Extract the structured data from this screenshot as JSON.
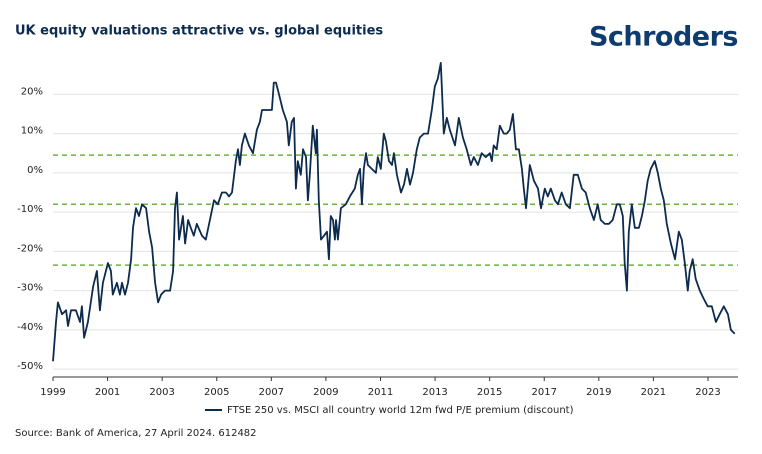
{
  "chart_data": {
    "type": "line",
    "title": "UK equity valuations attractive vs. global equities",
    "logo": "Schroders",
    "source": "Source: Bank of America, 27 April 2024. 612482",
    "x": [
      1999.0,
      1999.11,
      1999.18,
      1999.33,
      1999.48,
      1999.55,
      1999.66,
      1999.84,
      1999.99,
      2000.06,
      2000.14,
      2000.28,
      2000.47,
      2000.61,
      2000.72,
      2000.83,
      2001.01,
      2001.12,
      2001.19,
      2001.34,
      2001.45,
      2001.53,
      2001.64,
      2001.75,
      2001.86,
      2001.93,
      2002.04,
      2002.15,
      2002.26,
      2002.41,
      2002.52,
      2002.63,
      2002.74,
      2002.85,
      2002.96,
      2003.1,
      2003.29,
      2003.4,
      2003.47,
      2003.54,
      2003.62,
      2003.69,
      2003.76,
      2003.84,
      2003.95,
      2004.05,
      2004.16,
      2004.27,
      2004.46,
      2004.6,
      2004.75,
      2004.9,
      2005.04,
      2005.19,
      2005.34,
      2005.45,
      2005.56,
      2005.7,
      2005.78,
      2005.85,
      2005.92,
      2006.03,
      2006.18,
      2006.33,
      2006.47,
      2006.58,
      2006.66,
      2006.73,
      2006.8,
      2006.91,
      2007.02,
      2007.09,
      2007.17,
      2007.28,
      2007.42,
      2007.57,
      2007.64,
      2007.75,
      2007.83,
      2007.9,
      2007.97,
      2008.08,
      2008.16,
      2008.27,
      2008.34,
      2008.41,
      2008.52,
      2008.63,
      2008.67,
      2008.74,
      2008.82,
      2008.93,
      2009.04,
      2009.11,
      2009.18,
      2009.26,
      2009.33,
      2009.37,
      2009.44,
      2009.55,
      2009.73,
      2009.88,
      2010.06,
      2010.17,
      2010.25,
      2010.32,
      2010.39,
      2010.47,
      2010.54,
      2010.68,
      2010.83,
      2010.9,
      2011.01,
      2011.12,
      2011.2,
      2011.31,
      2011.42,
      2011.49,
      2011.6,
      2011.75,
      2011.86,
      2011.97,
      2012.08,
      2012.19,
      2012.33,
      2012.44,
      2012.59,
      2012.74,
      2012.88,
      2012.99,
      2013.1,
      2013.21,
      2013.32,
      2013.43,
      2013.54,
      2013.73,
      2013.87,
      2014.02,
      2014.16,
      2014.31,
      2014.42,
      2014.57,
      2014.71,
      2014.86,
      2015.01,
      2015.08,
      2015.15,
      2015.26,
      2015.37,
      2015.52,
      2015.63,
      2015.74,
      2015.85,
      2015.96,
      2016.07,
      2016.18,
      2016.25,
      2016.33,
      2016.47,
      2016.62,
      2016.77,
      2016.88,
      2017.02,
      2017.13,
      2017.24,
      2017.39,
      2017.5,
      2017.64,
      2017.79,
      2017.94,
      2018.08,
      2018.23,
      2018.38,
      2018.52,
      2018.67,
      2018.82,
      2018.96,
      2019.07,
      2019.22,
      2019.37,
      2019.51,
      2019.66,
      2019.77,
      2019.88,
      2019.95,
      2020.03,
      2020.1,
      2020.21,
      2020.32,
      2020.47,
      2020.58,
      2020.69,
      2020.79,
      2020.9,
      2021.05,
      2021.16,
      2021.27,
      2021.38,
      2021.49,
      2021.64,
      2021.79,
      2021.93,
      2022.04,
      2022.15,
      2022.26,
      2022.33,
      2022.44,
      2022.55,
      2022.7,
      2022.84,
      2022.99,
      2023.14,
      2023.29,
      2023.43,
      2023.58,
      2023.73,
      2023.84,
      2023.98
    ],
    "series": [
      {
        "name": "FTSE 250 vs. MSCI all country world 12m fwd P/E premium (discount)",
        "color": "#0d2b4e",
        "values": [
          -48,
          -38,
          -33,
          -36,
          -35,
          -39,
          -35,
          -35,
          -38,
          -34,
          -42,
          -38,
          -29,
          -25,
          -35,
          -28,
          -23,
          -25,
          -31,
          -28,
          -31,
          -28,
          -31,
          -28,
          -22,
          -14,
          -9,
          -11,
          -8,
          -9,
          -15,
          -19,
          -28,
          -33,
          -31,
          -30,
          -30,
          -25,
          -9,
          -5,
          -17,
          -14,
          -11,
          -18,
          -12,
          -14,
          -16,
          -13,
          -16,
          -17,
          -12,
          -7,
          -8,
          -5,
          -5,
          -6,
          -5,
          3,
          6,
          2,
          7,
          10,
          7,
          5,
          11,
          13,
          16,
          16,
          16,
          16,
          16,
          23,
          23,
          20,
          16,
          13,
          7,
          13,
          14,
          -4,
          3,
          -0.5,
          6,
          4,
          -7,
          -0.5,
          12,
          5,
          11,
          -7,
          -17,
          -16,
          -15,
          -22,
          -11,
          -12,
          -17,
          -12,
          -17,
          -9,
          -8,
          -6,
          -4,
          -0.5,
          1,
          -8,
          1,
          5,
          2,
          1,
          0,
          4,
          1,
          10,
          8,
          3,
          2,
          5,
          -0.5,
          -5,
          -3,
          1,
          -3,
          0,
          6,
          9,
          10,
          10,
          16,
          22,
          24,
          28,
          10,
          14,
          11,
          7,
          14,
          9,
          6,
          2,
          4,
          2,
          5,
          4,
          5,
          3,
          7,
          6,
          12,
          10,
          10,
          11,
          15,
          6,
          6,
          1,
          -4,
          -9,
          2,
          -2,
          -4,
          -9,
          -4,
          -6,
          -4,
          -7,
          -8,
          -5,
          -8,
          -9,
          -0.5,
          -0.5,
          -4,
          -5,
          -9,
          -12,
          -8,
          -12,
          -13,
          -13,
          -12,
          -8,
          -8,
          -11,
          -23,
          -30,
          -15,
          -8,
          -14,
          -14,
          -11,
          -7,
          -2,
          1,
          3,
          0,
          -4,
          -7,
          -13,
          -18,
          -22,
          -15,
          -17,
          -23,
          -30,
          -25,
          -22,
          -27,
          -30,
          -32,
          -34,
          -34,
          -38,
          -36,
          -34,
          -36,
          -40,
          -41
        ]
      }
    ],
    "xlim": [
      1999,
      2024.1
    ],
    "xticks": [
      1999,
      2001,
      2003,
      2005,
      2007,
      2009,
      2011,
      2013,
      2015,
      2017,
      2019,
      2021,
      2023
    ],
    "ylim": [
      -52,
      29
    ],
    "yticks": [
      {
        "value": -50,
        "label": "-50%"
      },
      {
        "value": -40,
        "label": "-40%"
      },
      {
        "value": -30,
        "label": "-30%"
      },
      {
        "value": -20,
        "label": "-20%"
      },
      {
        "value": -10,
        "label": "-10%"
      },
      {
        "value": 0,
        "label": "0%"
      },
      {
        "value": 10,
        "label": "10%"
      },
      {
        "value": 20,
        "label": "20%"
      }
    ],
    "reference_lines": [
      4.5,
      -8,
      -23.5
    ],
    "reference_color": "#6ab43e",
    "grid": true
  }
}
